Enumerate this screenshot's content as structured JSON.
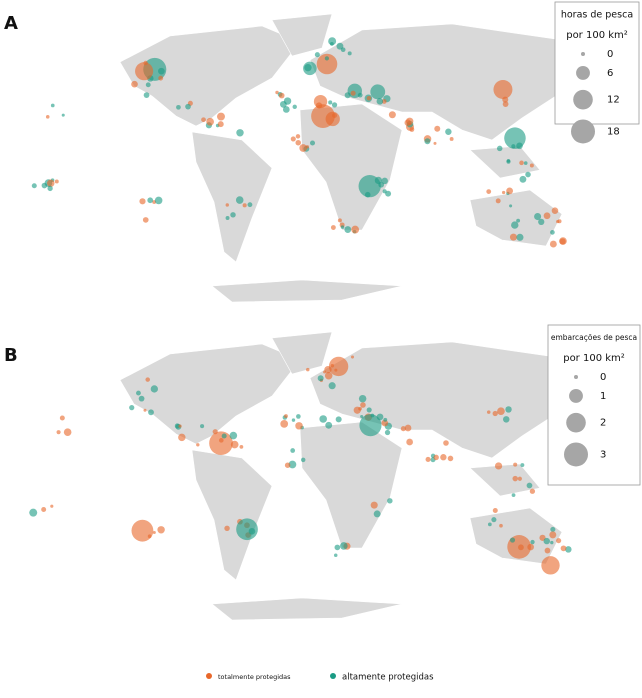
{
  "panels": [
    {
      "label": "A",
      "legend": {
        "title": "horas de pesca",
        "unit": "por 100 km²",
        "sizes": [
          0,
          6,
          12,
          18
        ]
      }
    },
    {
      "label": "B",
      "legend": {
        "title": "embarcações de pesca",
        "unit": "por 100 km²",
        "sizes": [
          0,
          1,
          2,
          3
        ]
      }
    }
  ],
  "legend": [
    {
      "label": "totalmente protegidas",
      "color": "#e8672a"
    },
    {
      "label": "altamente protegidas",
      "color": "#1a9b84"
    }
  ]
}
